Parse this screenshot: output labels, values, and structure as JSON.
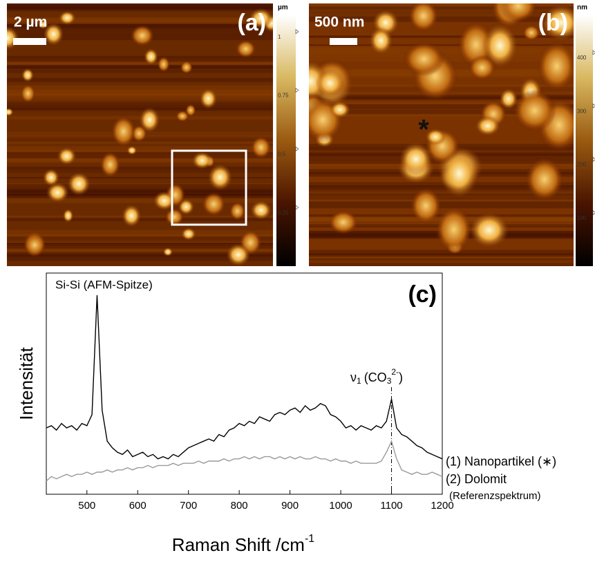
{
  "afm_panels": [
    {
      "label": "(a)",
      "scale_bar": "2 µm",
      "colorbar": {
        "unit": "µm",
        "lim": [
          0,
          1.07
        ],
        "ticks": [
          0.25,
          0.5,
          0.75,
          1
        ]
      }
    },
    {
      "label": "(b)",
      "scale_bar": "500 nm",
      "colorbar": {
        "unit": "nm",
        "lim": [
          0,
          470
        ],
        "ticks": [
          100,
          200,
          300,
          400
        ]
      }
    }
  ],
  "asterisk": "*",
  "chart_data": {
    "type": "line",
    "panel_label": "(c)",
    "x_label": {
      "text": "Raman Shift /cm",
      "sup": "-1"
    },
    "y_label": "Intensität",
    "annotations": {
      "si": "Si-Si (AFM-Spitze)",
      "nu": "ν",
      "nu_sub": "1",
      "co": "(CO",
      "co_sub": "3",
      "co_sup": "2-",
      "close": ")",
      "reference": "(Referenzspektrum)"
    },
    "marker_x": 1100,
    "xlim": [
      420,
      1200
    ],
    "xticks": [
      500,
      600,
      700,
      800,
      900,
      1000,
      1100,
      1200
    ],
    "ylim": [
      0,
      100
    ],
    "x": [
      420,
      430,
      440,
      450,
      460,
      470,
      480,
      490,
      500,
      510,
      520,
      530,
      540,
      550,
      560,
      570,
      580,
      590,
      600,
      610,
      620,
      630,
      640,
      650,
      660,
      670,
      680,
      690,
      700,
      710,
      720,
      730,
      740,
      750,
      760,
      770,
      780,
      790,
      800,
      810,
      820,
      830,
      840,
      850,
      860,
      870,
      880,
      890,
      900,
      910,
      920,
      930,
      940,
      950,
      960,
      970,
      980,
      990,
      1000,
      1010,
      1020,
      1030,
      1040,
      1050,
      1060,
      1070,
      1080,
      1090,
      1100,
      1110,
      1120,
      1130,
      1140,
      1150,
      1160,
      1170,
      1180,
      1190,
      1200
    ],
    "series": [
      {
        "name": "(1) Nanopartikel (∗)",
        "color": "#000000",
        "values": [
          30,
          31,
          29,
          32,
          30,
          31,
          29,
          32,
          31,
          36,
          90,
          38,
          24,
          21,
          19,
          18,
          20,
          17,
          18,
          19,
          17,
          18,
          16,
          17,
          16,
          18,
          17,
          19,
          21,
          22,
          23,
          24,
          25,
          24,
          27,
          26,
          29,
          30,
          32,
          31,
          33,
          32,
          35,
          34,
          33,
          36,
          37,
          36,
          38,
          39,
          37,
          40,
          38,
          39,
          41,
          40,
          36,
          35,
          33,
          30,
          31,
          29,
          31,
          30,
          29,
          31,
          30,
          33,
          43,
          30,
          27,
          26,
          24,
          22,
          21,
          19,
          18,
          17,
          16
        ]
      },
      {
        "name": "(2) Dolomit",
        "color": "#999999",
        "values": [
          6,
          8,
          7,
          8,
          9,
          8,
          9,
          9,
          10,
          9,
          10,
          10,
          11,
          10,
          11,
          11,
          12,
          11,
          12,
          12,
          13,
          12,
          13,
          13,
          13,
          14,
          13,
          14,
          14,
          14,
          15,
          14,
          15,
          15,
          15,
          16,
          15,
          16,
          16,
          17,
          16,
          17,
          16,
          17,
          17,
          16,
          17,
          16,
          17,
          16,
          17,
          16,
          16,
          17,
          16,
          16,
          15,
          16,
          15,
          15,
          14,
          15,
          14,
          14,
          14,
          14,
          15,
          19,
          24,
          16,
          11,
          10,
          9,
          10,
          9,
          9,
          10,
          9,
          8
        ]
      }
    ]
  }
}
